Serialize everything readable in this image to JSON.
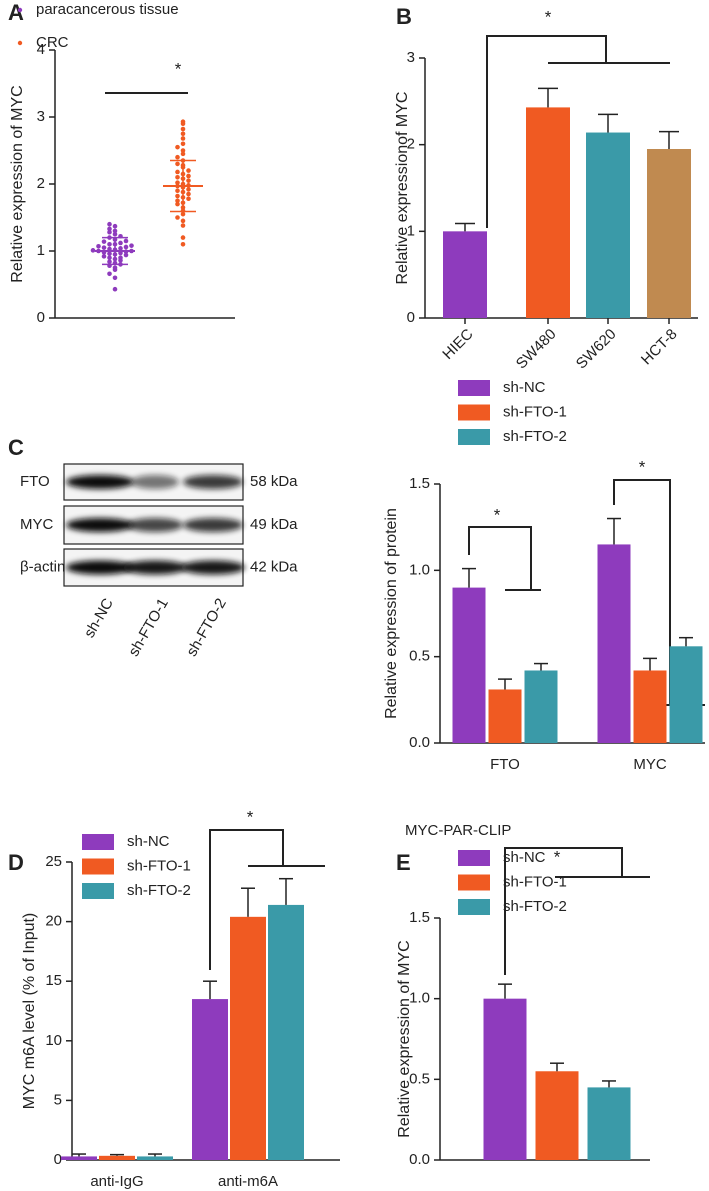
{
  "chart_data": [
    {
      "type": "scatter",
      "panel": "A",
      "y_label": "Relative expression of MYC",
      "annotation": "*",
      "ylim": [
        0,
        4
      ],
      "yticks": [
        0,
        1,
        2,
        3,
        4
      ],
      "series": [
        {
          "name": "paracancerous tissue",
          "color": "#8e3bbd",
          "mean": 1.0,
          "sd": 0.2,
          "values": [
            0.43,
            0.6,
            0.66,
            0.72,
            0.75,
            0.78,
            0.8,
            0.82,
            0.84,
            0.86,
            0.88,
            0.9,
            0.9,
            0.92,
            0.94,
            0.95,
            0.96,
            0.97,
            0.98,
            0.99,
            1.0,
            1.0,
            1.01,
            1.02,
            1.03,
            1.04,
            1.05,
            1.06,
            1.07,
            1.08,
            1.1,
            1.1,
            1.12,
            1.14,
            1.15,
            1.17,
            1.2,
            1.22,
            1.25,
            1.28,
            1.3,
            1.33,
            1.37,
            1.4
          ]
        },
        {
          "name": "CRC",
          "color": "#f05a22",
          "mean": 1.97,
          "sd": 0.38,
          "values": [
            1.1,
            1.2,
            1.38,
            1.45,
            1.5,
            1.55,
            1.6,
            1.65,
            1.7,
            1.72,
            1.75,
            1.78,
            1.8,
            1.82,
            1.85,
            1.88,
            1.9,
            1.92,
            1.95,
            1.97,
            1.98,
            2.0,
            2.02,
            2.05,
            2.08,
            2.1,
            2.12,
            2.15,
            2.18,
            2.2,
            2.25,
            2.28,
            2.3,
            2.35,
            2.4,
            2.45,
            2.5,
            2.55,
            2.6,
            2.68,
            2.75,
            2.82,
            2.9,
            2.93
          ]
        }
      ]
    },
    {
      "type": "bar",
      "panel": "B",
      "y_label": "Relative expressionof MYC",
      "annotation": "*",
      "categories": [
        "HIEC",
        "SW480",
        "SW620",
        "HCT-8"
      ],
      "values": [
        1.0,
        2.43,
        2.14,
        1.95
      ],
      "errors": [
        0.09,
        0.22,
        0.21,
        0.2
      ],
      "colors": [
        "#8e3bbd",
        "#f05a22",
        "#3a9aa8",
        "#c08a50"
      ],
      "ylim": [
        0,
        3
      ],
      "yticks": [
        0,
        1,
        2,
        3
      ]
    },
    {
      "type": "bar",
      "y_label": "Relative expression of protein",
      "annotation": "*",
      "categories": [
        "FTO",
        "MYC"
      ],
      "ylim": [
        0,
        1.5
      ],
      "yticks": [
        {
          "value": 0,
          "label": "0.0"
        },
        0.5,
        {
          "value": 1,
          "label": "1.0"
        },
        1.5
      ],
      "series": [
        {
          "name": "sh-NC",
          "color": "#8e3bbd",
          "values": [
            0.9,
            1.15
          ],
          "errors": [
            0.11,
            0.15
          ]
        },
        {
          "name": "sh-FTO-1",
          "color": "#f05a22",
          "values": [
            0.31,
            0.42
          ],
          "errors": [
            0.06,
            0.07
          ]
        },
        {
          "name": "sh-FTO-2",
          "color": "#3a9aa8",
          "values": [
            0.42,
            0.56
          ],
          "errors": [
            0.04,
            0.05
          ]
        }
      ]
    },
    {
      "type": "bar",
      "panel": "D",
      "y_label": "MYC m6A level (% of Input)",
      "annotation": "*",
      "categories": [
        "anti-IgG",
        "anti-m6A"
      ],
      "ylim": [
        0,
        25
      ],
      "yticks": [
        0,
        5,
        10,
        15,
        20,
        25
      ],
      "series": [
        {
          "name": "sh-NC",
          "color": "#8e3bbd",
          "values": [
            0.3,
            13.5
          ],
          "errors": [
            0.2,
            1.5
          ]
        },
        {
          "name": "sh-FTO-1",
          "color": "#f05a22",
          "values": [
            0.35,
            20.4
          ],
          "errors": [
            0.1,
            2.4
          ]
        },
        {
          "name": "sh-FTO-2",
          "color": "#3a9aa8",
          "values": [
            0.3,
            21.4
          ],
          "errors": [
            0.2,
            2.2
          ]
        }
      ]
    },
    {
      "type": "bar",
      "panel": "E",
      "title": "MYC-PAR-CLIP",
      "y_label": "Relative expression of MYC",
      "annotation": "*",
      "categories": [
        null
      ],
      "ylim": [
        0,
        1.5
      ],
      "yticks": [
        {
          "value": 0,
          "label": "0.0"
        },
        0.5,
        {
          "value": 1,
          "label": "1.0"
        },
        1.5
      ],
      "series": [
        {
          "name": "sh-NC",
          "color": "#8e3bbd",
          "values": [
            1.0
          ],
          "errors": [
            0.09
          ]
        },
        {
          "name": "sh-FTO-1",
          "color": "#f05a22",
          "values": [
            0.55
          ],
          "errors": [
            0.05
          ]
        },
        {
          "name": "sh-FTO-2",
          "color": "#3a9aa8",
          "values": [
            0.45
          ],
          "errors": [
            0.04
          ]
        }
      ]
    }
  ],
  "blot": {
    "panel": "C",
    "rows": [
      {
        "label": "FTO",
        "size": "58 kDa"
      },
      {
        "label": "MYC",
        "size": "49 kDa"
      },
      {
        "label": "β-actin",
        "size": "42 kDa"
      }
    ],
    "lanes": [
      "sh-NC",
      "sh-FTO-1",
      "sh-FTO-2"
    ]
  }
}
